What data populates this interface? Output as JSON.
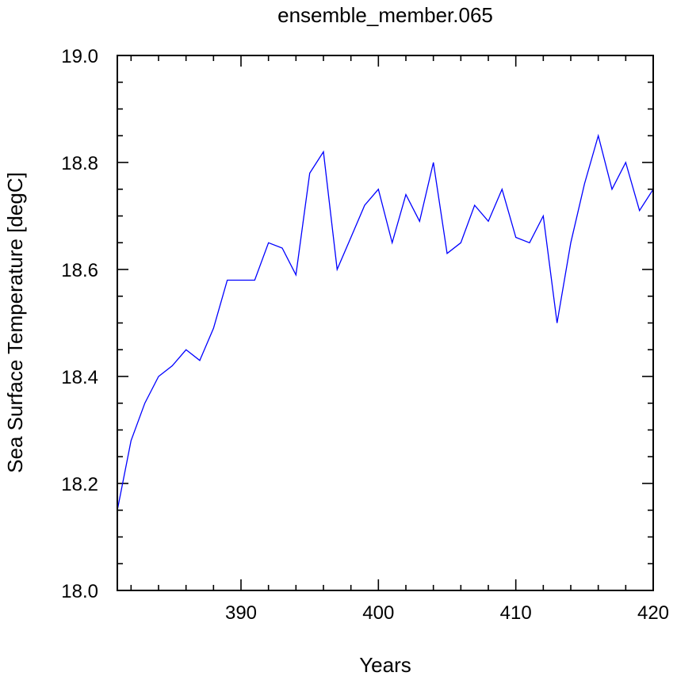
{
  "chart_data": {
    "type": "line",
    "title": "ensemble_member.065",
    "xlabel": "Years",
    "ylabel": "Sea Surface Temperature [degC]",
    "xlim": [
      381,
      420
    ],
    "ylim": [
      18.0,
      19.0
    ],
    "x_ticks": [
      390,
      400,
      410,
      420
    ],
    "y_ticks": [
      18.0,
      18.2,
      18.4,
      18.6,
      18.8,
      19.0
    ],
    "y_tick_labels": [
      "18.0",
      "18.2",
      "18.4",
      "18.6",
      "18.8",
      "19.0"
    ],
    "grid": false,
    "line_color": "#0000ff",
    "series": [
      {
        "x": [
          381,
          382,
          383,
          384,
          385,
          386,
          387,
          388,
          389,
          390,
          391,
          392,
          393,
          394,
          395,
          396,
          397,
          398,
          399,
          400,
          401,
          402,
          403,
          404,
          405,
          406,
          407,
          408,
          409,
          410,
          411,
          412,
          413,
          414,
          415,
          416,
          417,
          418,
          419,
          420
        ],
        "values": [
          18.15,
          18.28,
          18.35,
          18.4,
          18.42,
          18.45,
          18.43,
          18.49,
          18.58,
          18.58,
          18.58,
          18.65,
          18.64,
          18.59,
          18.78,
          18.82,
          18.6,
          18.66,
          18.72,
          18.75,
          18.65,
          18.74,
          18.69,
          18.8,
          18.63,
          18.65,
          18.72,
          18.69,
          18.75,
          18.66,
          18.65,
          18.7,
          18.5,
          18.65,
          18.76,
          18.85,
          18.75,
          18.8,
          18.71,
          18.75
        ]
      }
    ]
  }
}
